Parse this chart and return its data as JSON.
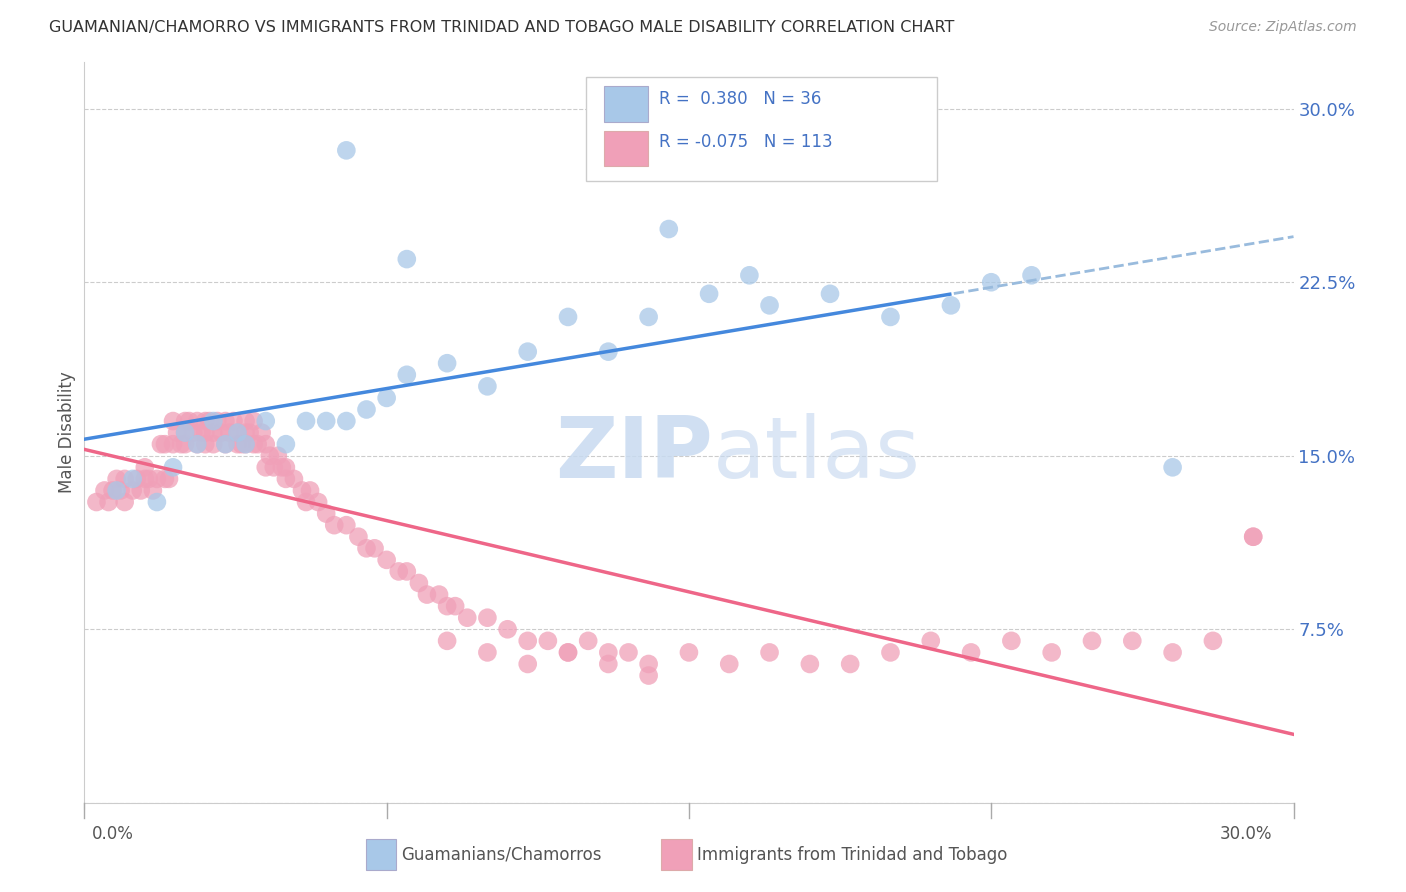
{
  "title": "GUAMANIAN/CHAMORRO VS IMMIGRANTS FROM TRINIDAD AND TOBAGO MALE DISABILITY CORRELATION CHART",
  "source": "Source: ZipAtlas.com",
  "ylabel": "Male Disability",
  "y_ticks": [
    0.0,
    0.075,
    0.15,
    0.225,
    0.3
  ],
  "y_tick_labels": [
    "",
    "7.5%",
    "15.0%",
    "22.5%",
    "30.0%"
  ],
  "x_range": [
    0.0,
    0.3
  ],
  "y_range": [
    0.0,
    0.32
  ],
  "blue_color": "#a8c8e8",
  "pink_color": "#f0a0b8",
  "line_blue_solid": "#4488dd",
  "line_blue_dash": "#99bbdd",
  "line_pink": "#ee6688",
  "guam_label": "Guamanians/Chamorros",
  "trini_label": "Immigrants from Trinidad and Tobago",
  "legend_text_color": "#4472c4",
  "watermark_color": "#c8daf0",
  "blue_x": [
    0.008,
    0.012,
    0.018,
    0.022,
    0.025,
    0.028,
    0.032,
    0.035,
    0.038,
    0.04,
    0.045,
    0.05,
    0.055,
    0.06,
    0.065,
    0.07,
    0.075,
    0.08,
    0.09,
    0.1,
    0.11,
    0.12,
    0.13,
    0.14,
    0.155,
    0.17,
    0.185,
    0.2,
    0.215,
    0.225,
    0.065,
    0.08,
    0.145,
    0.165,
    0.235,
    0.27
  ],
  "blue_y": [
    0.135,
    0.14,
    0.13,
    0.145,
    0.16,
    0.155,
    0.165,
    0.155,
    0.16,
    0.155,
    0.165,
    0.155,
    0.165,
    0.165,
    0.165,
    0.17,
    0.175,
    0.185,
    0.19,
    0.18,
    0.195,
    0.21,
    0.195,
    0.21,
    0.22,
    0.215,
    0.22,
    0.21,
    0.215,
    0.225,
    0.282,
    0.235,
    0.248,
    0.228,
    0.228,
    0.145
  ],
  "pink_x": [
    0.003,
    0.005,
    0.006,
    0.007,
    0.008,
    0.009,
    0.01,
    0.01,
    0.012,
    0.013,
    0.014,
    0.015,
    0.015,
    0.016,
    0.017,
    0.018,
    0.019,
    0.02,
    0.02,
    0.021,
    0.022,
    0.022,
    0.023,
    0.024,
    0.025,
    0.025,
    0.025,
    0.026,
    0.027,
    0.028,
    0.028,
    0.029,
    0.03,
    0.03,
    0.03,
    0.031,
    0.032,
    0.032,
    0.033,
    0.034,
    0.035,
    0.035,
    0.036,
    0.037,
    0.038,
    0.038,
    0.039,
    0.04,
    0.04,
    0.04,
    0.041,
    0.042,
    0.042,
    0.043,
    0.044,
    0.045,
    0.045,
    0.046,
    0.047,
    0.048,
    0.049,
    0.05,
    0.05,
    0.052,
    0.054,
    0.055,
    0.056,
    0.058,
    0.06,
    0.062,
    0.065,
    0.068,
    0.07,
    0.072,
    0.075,
    0.078,
    0.08,
    0.083,
    0.085,
    0.088,
    0.09,
    0.092,
    0.095,
    0.1,
    0.105,
    0.11,
    0.115,
    0.12,
    0.125,
    0.13,
    0.135,
    0.14,
    0.15,
    0.16,
    0.17,
    0.18,
    0.19,
    0.2,
    0.21,
    0.22,
    0.23,
    0.24,
    0.25,
    0.26,
    0.27,
    0.28,
    0.29,
    0.29,
    0.09,
    0.1,
    0.11,
    0.12,
    0.13,
    0.14
  ],
  "pink_y": [
    0.13,
    0.135,
    0.13,
    0.135,
    0.14,
    0.135,
    0.13,
    0.14,
    0.135,
    0.14,
    0.135,
    0.14,
    0.145,
    0.14,
    0.135,
    0.14,
    0.155,
    0.14,
    0.155,
    0.14,
    0.155,
    0.165,
    0.16,
    0.155,
    0.165,
    0.155,
    0.16,
    0.165,
    0.16,
    0.165,
    0.155,
    0.16,
    0.165,
    0.155,
    0.16,
    0.165,
    0.16,
    0.155,
    0.165,
    0.16,
    0.165,
    0.155,
    0.16,
    0.165,
    0.155,
    0.16,
    0.155,
    0.165,
    0.16,
    0.155,
    0.16,
    0.165,
    0.155,
    0.155,
    0.16,
    0.155,
    0.145,
    0.15,
    0.145,
    0.15,
    0.145,
    0.145,
    0.14,
    0.14,
    0.135,
    0.13,
    0.135,
    0.13,
    0.125,
    0.12,
    0.12,
    0.115,
    0.11,
    0.11,
    0.105,
    0.1,
    0.1,
    0.095,
    0.09,
    0.09,
    0.085,
    0.085,
    0.08,
    0.08,
    0.075,
    0.07,
    0.07,
    0.065,
    0.07,
    0.065,
    0.065,
    0.06,
    0.065,
    0.06,
    0.065,
    0.06,
    0.06,
    0.065,
    0.07,
    0.065,
    0.07,
    0.065,
    0.07,
    0.07,
    0.065,
    0.07,
    0.115,
    0.115,
    0.07,
    0.065,
    0.06,
    0.065,
    0.06,
    0.055
  ]
}
